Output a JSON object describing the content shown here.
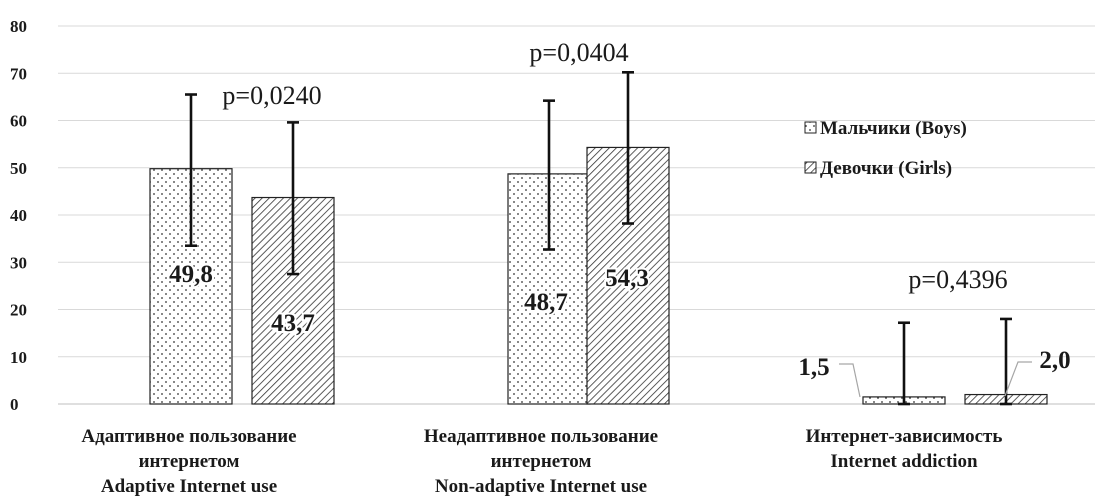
{
  "chart_data": {
    "type": "bar",
    "title": "",
    "xlabel": "",
    "ylabel": "",
    "ylim": [
      0,
      80
    ],
    "yticks": [
      0,
      10,
      20,
      30,
      40,
      50,
      60,
      70,
      80
    ],
    "grid": true,
    "legend_position": "right",
    "categories": [
      [
        "Адаптивное пользование",
        "интернетом",
        "Adaptive Internet use"
      ],
      [
        "Неадаптивное пользование",
        "интернетом",
        "Non-adaptive Internet use"
      ],
      [
        "Интернет-зависимость",
        "Internet addiction"
      ]
    ],
    "series": [
      {
        "name": "Мальчики (Boys)",
        "pattern": "dots",
        "values": [
          49.8,
          48.7,
          1.5
        ],
        "error_upper": [
          65.5,
          64.2,
          17.2
        ],
        "error_lower": [
          33.5,
          32.7,
          0
        ],
        "value_labels": [
          "49,8",
          "48,7",
          "1,5"
        ]
      },
      {
        "name": "Девочки (Girls)",
        "pattern": "hatch",
        "values": [
          43.7,
          54.3,
          2.0
        ],
        "error_upper": [
          59.6,
          70.2,
          18.0
        ],
        "error_lower": [
          27.5,
          38.2,
          0
        ],
        "value_labels": [
          "43,7",
          "54,3",
          "2,0"
        ]
      }
    ],
    "annotations": [
      "p=0,0240",
      "p=0,0404",
      "p=0,4396"
    ],
    "colors": {
      "bar_fill": "#ffffff",
      "bar_stroke": "#222222",
      "pattern": "#333333",
      "grid": "#d9d9d9",
      "error": "#111111"
    }
  }
}
